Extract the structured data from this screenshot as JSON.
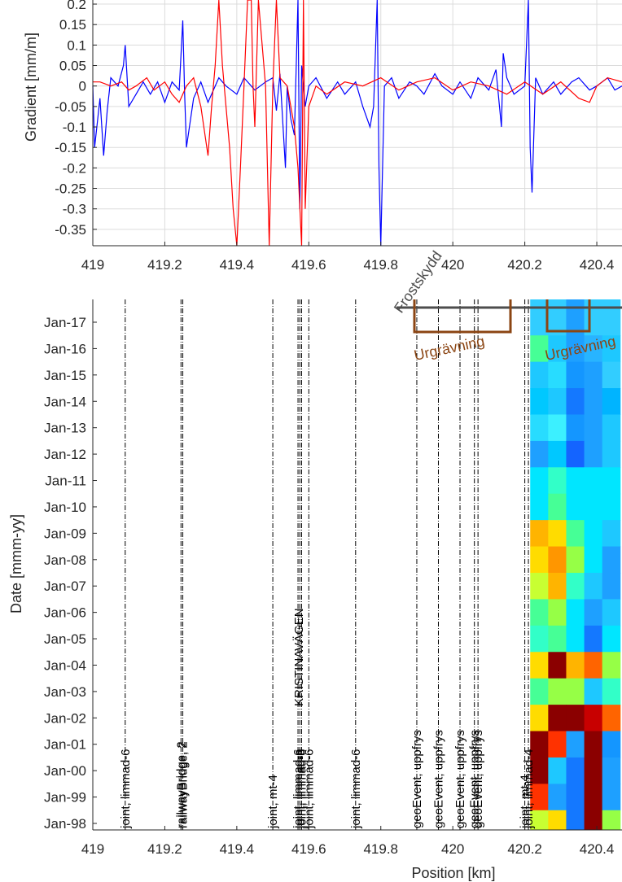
{
  "chart_data": [
    {
      "type": "line",
      "ylabel": "Gradient [mm/m]",
      "xlabel": "",
      "xlim": [
        419,
        420.47
      ],
      "ylim": [
        -0.39,
        0.21
      ],
      "xticks": [
        "419",
        "419.2",
        "419.4",
        "419.6",
        "419.8",
        "420",
        "420.2",
        "420.4"
      ],
      "yticks": [
        "0.2",
        "0.15",
        "0.1",
        "0.05",
        "0",
        "-0.05",
        "-0.1",
        "-0.15",
        "-0.2",
        "-0.25",
        "-0.3",
        "-0.35"
      ],
      "grid": true,
      "series": [
        {
          "color": "#0000ff",
          "points": [
            [
              419.0,
              0.0
            ],
            [
              419.005,
              -0.15
            ],
            [
              419.02,
              -0.03
            ],
            [
              419.03,
              -0.17
            ],
            [
              419.04,
              -0.06
            ],
            [
              419.05,
              0.02
            ],
            [
              419.07,
              0.0
            ],
            [
              419.085,
              0.05
            ],
            [
              419.09,
              0.1
            ],
            [
              419.1,
              -0.05
            ],
            [
              419.12,
              -0.02
            ],
            [
              419.14,
              0.01
            ],
            [
              419.16,
              -0.02
            ],
            [
              419.18,
              0.01
            ],
            [
              419.2,
              -0.04
            ],
            [
              419.22,
              0.01
            ],
            [
              419.24,
              -0.01
            ],
            [
              419.25,
              0.16
            ],
            [
              419.255,
              -0.02
            ],
            [
              419.26,
              -0.15
            ],
            [
              419.28,
              -0.03
            ],
            [
              419.3,
              0.01
            ],
            [
              419.32,
              -0.04
            ],
            [
              419.35,
              0.02
            ],
            [
              419.37,
              0.0
            ],
            [
              419.4,
              -0.02
            ],
            [
              419.42,
              0.02
            ],
            [
              419.45,
              -0.01
            ],
            [
              419.48,
              0.01
            ],
            [
              419.5,
              0.02
            ],
            [
              419.51,
              -0.06
            ],
            [
              419.52,
              0.03
            ],
            [
              419.535,
              -0.2
            ],
            [
              419.54,
              0.0
            ],
            [
              419.55,
              -0.08
            ],
            [
              419.56,
              -0.12
            ],
            [
              419.57,
              0.21
            ],
            [
              419.575,
              -0.3
            ],
            [
              419.58,
              0.05
            ],
            [
              419.59,
              -0.05
            ],
            [
              419.6,
              0.0
            ],
            [
              419.62,
              0.02
            ],
            [
              419.65,
              -0.03
            ],
            [
              419.68,
              0.01
            ],
            [
              419.7,
              -0.02
            ],
            [
              419.73,
              0.01
            ],
            [
              419.75,
              -0.05
            ],
            [
              419.77,
              -0.1
            ],
            [
              419.78,
              -0.05
            ],
            [
              419.79,
              0.21
            ],
            [
              419.795,
              -0.2
            ],
            [
              419.8,
              -0.39
            ],
            [
              419.81,
              0.0
            ],
            [
              419.83,
              0.02
            ],
            [
              419.85,
              -0.03
            ],
            [
              419.88,
              0.01
            ],
            [
              419.9,
              0.0
            ],
            [
              419.92,
              -0.02
            ],
            [
              419.95,
              0.03
            ],
            [
              419.97,
              0.0
            ],
            [
              420.0,
              -0.02
            ],
            [
              420.02,
              0.01
            ],
            [
              420.05,
              -0.03
            ],
            [
              420.07,
              0.02
            ],
            [
              420.1,
              -0.01
            ],
            [
              420.12,
              0.04
            ],
            [
              420.135,
              -0.1
            ],
            [
              420.14,
              0.08
            ],
            [
              420.15,
              0.02
            ],
            [
              420.17,
              -0.02
            ],
            [
              420.2,
              0.0
            ],
            [
              420.21,
              0.21
            ],
            [
              420.215,
              -0.15
            ],
            [
              420.22,
              -0.26
            ],
            [
              420.23,
              0.02
            ],
            [
              420.25,
              -0.02
            ],
            [
              420.28,
              0.01
            ],
            [
              420.3,
              -0.02
            ],
            [
              420.33,
              0.01
            ],
            [
              420.35,
              0.02
            ],
            [
              420.38,
              -0.01
            ],
            [
              420.4,
              0.0
            ],
            [
              420.43,
              0.02
            ],
            [
              420.45,
              -0.01
            ],
            [
              420.47,
              0.0
            ]
          ]
        },
        {
          "color": "#ff0000",
          "points": [
            [
              419.0,
              0.01
            ],
            [
              419.02,
              0.01
            ],
            [
              419.05,
              0.0
            ],
            [
              419.08,
              0.01
            ],
            [
              419.1,
              -0.01
            ],
            [
              419.12,
              0.0
            ],
            [
              419.15,
              0.02
            ],
            [
              419.17,
              -0.01
            ],
            [
              419.2,
              0.01
            ],
            [
              419.22,
              -0.02
            ],
            [
              419.24,
              -0.04
            ],
            [
              419.26,
              0.0
            ],
            [
              419.28,
              0.02
            ],
            [
              419.3,
              -0.05
            ],
            [
              419.32,
              -0.17
            ],
            [
              419.33,
              -0.05
            ],
            [
              419.34,
              0.05
            ],
            [
              419.35,
              0.21
            ],
            [
              419.36,
              0.05
            ],
            [
              419.37,
              -0.05
            ],
            [
              419.38,
              -0.15
            ],
            [
              419.39,
              -0.3
            ],
            [
              419.4,
              -0.39
            ],
            [
              419.41,
              -0.2
            ],
            [
              419.42,
              0.0
            ],
            [
              419.43,
              0.21
            ],
            [
              419.44,
              0.21
            ],
            [
              419.445,
              0.0
            ],
            [
              419.45,
              -0.1
            ],
            [
              419.46,
              0.21
            ],
            [
              419.48,
              0.0
            ],
            [
              419.49,
              -0.39
            ],
            [
              419.5,
              0.0
            ],
            [
              419.51,
              0.21
            ],
            [
              419.52,
              0.02
            ],
            [
              419.54,
              0.0
            ],
            [
              419.55,
              -0.05
            ],
            [
              419.56,
              -0.1
            ],
            [
              419.57,
              -0.2
            ],
            [
              419.58,
              -0.39
            ],
            [
              419.585,
              0.21
            ],
            [
              419.59,
              -0.3
            ],
            [
              419.6,
              -0.05
            ],
            [
              419.62,
              0.0
            ],
            [
              419.65,
              -0.02
            ],
            [
              419.7,
              0.01
            ],
            [
              419.75,
              0.0
            ],
            [
              419.8,
              0.02
            ],
            [
              419.85,
              -0.01
            ],
            [
              419.9,
              0.01
            ],
            [
              419.95,
              0.02
            ],
            [
              420.0,
              -0.01
            ],
            [
              420.05,
              0.01
            ],
            [
              420.1,
              0.0
            ],
            [
              420.15,
              -0.02
            ],
            [
              420.2,
              0.01
            ],
            [
              420.25,
              -0.02
            ],
            [
              420.3,
              0.01
            ],
            [
              420.35,
              -0.03
            ],
            [
              420.38,
              -0.04
            ],
            [
              420.4,
              0.0
            ],
            [
              420.43,
              0.02
            ],
            [
              420.47,
              0.01
            ]
          ]
        }
      ]
    },
    {
      "type": "heatmap",
      "xlabel": "Position [km]",
      "ylabel": "Date [mmm-yy]",
      "xlim": [
        419,
        420.47
      ],
      "xticks": [
        "419",
        "419.2",
        "419.4",
        "419.6",
        "419.8",
        "420",
        "420.2",
        "420.4"
      ],
      "yticks": [
        "Jan-17",
        "Jan-16",
        "Jan-15",
        "Jan-14",
        "Jan-13",
        "Jan-12",
        "Jan-11",
        "Jan-10",
        "Jan-09",
        "Jan-08",
        "Jan-07",
        "Jan-06",
        "Jan-05",
        "Jan-04",
        "Jan-03",
        "Jan-02",
        "Jan-01",
        "Jan-00",
        "Jan-99",
        "Jan-98"
      ],
      "event_lines": [
        {
          "x": 419.09,
          "label": "joint, limmad-6"
        },
        {
          "x": 419.245,
          "label": "railwayBridge, 2"
        },
        {
          "x": 419.25,
          "label": "railwayBridge, 2"
        },
        {
          "x": 419.5,
          "label": "joint, mt-4"
        },
        {
          "x": 419.57,
          "label": "joint, limmad-6"
        },
        {
          "x": 419.575,
          "label": "joint, limmad-6"
        },
        {
          "x": 419.58,
          "label": "joint, limmad-6"
        },
        {
          "x": 419.6,
          "label": "joint, limmad-6"
        },
        {
          "x": 419.73,
          "label": "joint, limmad-6"
        },
        {
          "x": 419.9,
          "label": "geoEvent, uppfrys"
        },
        {
          "x": 419.96,
          "label": "geoEvent, uppfrys"
        },
        {
          "x": 420.02,
          "label": "geoEvent, uppfrys"
        },
        {
          "x": 420.06,
          "label": "geoEvent, uppfrys"
        },
        {
          "x": 420.07,
          "label": "geoEvent, uppfrys"
        },
        {
          "x": 420.2,
          "label": "joint, mt-4"
        },
        {
          "x": 420.21,
          "label": "joint, limmad-4"
        }
      ],
      "bridge_label": "KRISTINAVÄGEN",
      "annotations": [
        "Frostskydd",
        "Urgrävning",
        "Urgrävning"
      ],
      "heatmap_cells": {
        "columns_x": [
          420.24,
          420.29,
          420.34,
          420.39,
          420.44
        ],
        "column_width": 0.05,
        "rows": [
          {
            "date": "Jan-17",
            "colors": [
              "#32cdff",
              "#32cdff",
              "#1ea0ff",
              "#32cdff",
              "#32cdff"
            ]
          },
          {
            "date": "Jan-16",
            "colors": [
              "#46ff96",
              "#1ec8ff",
              "#1ea0ff",
              "#28b4ff",
              "#1ec8ff"
            ]
          },
          {
            "date": "Jan-15",
            "colors": [
              "#1ec8ff",
              "#28dcff",
              "#1496ff",
              "#1ea0ff",
              "#32cdff"
            ]
          },
          {
            "date": "Jan-14",
            "colors": [
              "#00c8ff",
              "#1ec8ff",
              "#1478ff",
              "#1ea0ff",
              "#00b4ff"
            ]
          },
          {
            "date": "Jan-13",
            "colors": [
              "#28dcff",
              "#3cf0ff",
              "#1496ff",
              "#1ea0ff",
              "#1ec8ff"
            ]
          },
          {
            "date": "Jan-12",
            "colors": [
              "#1ea0ff",
              "#00c8ff",
              "#1464ff",
              "#1ea0ff",
              "#1ec8ff"
            ]
          },
          {
            "date": "Jan-11",
            "colors": [
              "#00e6ff",
              "#32ffc8",
              "#00e6ff",
              "#00e6ff",
              "#00e6ff"
            ]
          },
          {
            "date": "Jan-10",
            "colors": [
              "#00e6ff",
              "#46ff96",
              "#00e6ff",
              "#00e6ff",
              "#00e6ff"
            ]
          },
          {
            "date": "Jan-09",
            "colors": [
              "#ffb400",
              "#ffdc00",
              "#46ff96",
              "#00e6ff",
              "#1ec8ff"
            ]
          },
          {
            "date": "Jan-08",
            "colors": [
              "#ffdc00",
              "#ff9600",
              "#96ff46",
              "#00e6ff",
              "#1ea0ff"
            ]
          },
          {
            "date": "Jan-07",
            "colors": [
              "#c8ff32",
              "#ffb400",
              "#32ffc8",
              "#1ec8ff",
              "#1ea0ff"
            ]
          },
          {
            "date": "Jan-06",
            "colors": [
              "#46ff96",
              "#96ff46",
              "#00e6ff",
              "#1ea0ff",
              "#1ec8ff"
            ]
          },
          {
            "date": "Jan-05",
            "colors": [
              "#32ffc8",
              "#46ff96",
              "#00e6ff",
              "#1478ff",
              "#00e6ff"
            ]
          },
          {
            "date": "Jan-04",
            "colors": [
              "#ffdc00",
              "#8b0000",
              "#ffb400",
              "#ff6400",
              "#96ff46"
            ]
          },
          {
            "date": "Jan-03",
            "colors": [
              "#46ff96",
              "#96ff46",
              "#96ff46",
              "#1ec8ff",
              "#32ffc8"
            ]
          },
          {
            "date": "Jan-02",
            "colors": [
              "#ffdc00",
              "#8b0000",
              "#8b0000",
              "#c80000",
              "#ff6400"
            ]
          },
          {
            "date": "Jan-01",
            "colors": [
              "#8b0000",
              "#ff3200",
              "#1ea0ff",
              "#8b0000",
              "#1496ff"
            ]
          },
          {
            "date": "Jan-00",
            "colors": [
              "#8b0000",
              "#1ec8ff",
              "#1478ff",
              "#8b0000",
              "#1ea0ff"
            ]
          },
          {
            "date": "Jan-99",
            "colors": [
              "#ff3200",
              "#1ea0ff",
              "#1478ff",
              "#8b0000",
              "#1ea0ff"
            ]
          },
          {
            "date": "Jan-98",
            "colors": [
              "#c8ff32",
              "#ffdc00",
              "#1478ff",
              "#8b0000",
              "#96ff46"
            ]
          }
        ]
      }
    }
  ]
}
